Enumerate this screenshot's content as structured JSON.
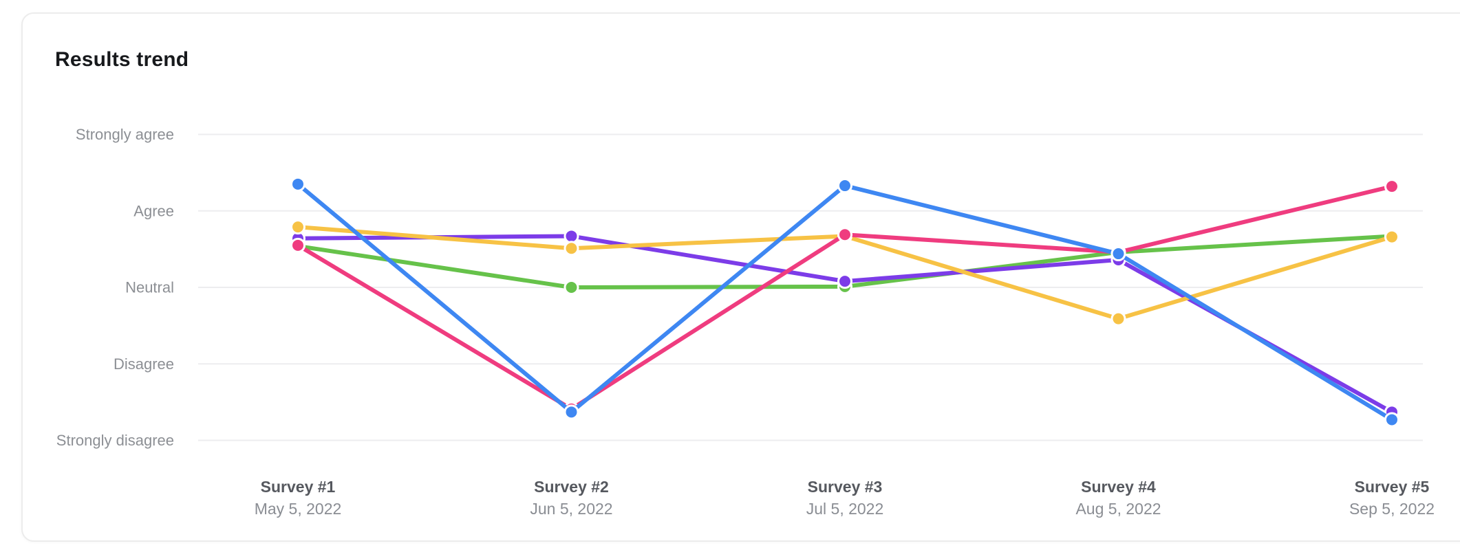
{
  "chart_data": {
    "type": "line",
    "title": "Results trend",
    "legend": false,
    "grid": true,
    "y_axis": {
      "tick_labels": [
        "Strongly agree",
        "Agree",
        "Neutral",
        "Disagree",
        "Strongly disagree"
      ],
      "tick_values": [
        5,
        4,
        3,
        2,
        1
      ],
      "range": [
        1,
        5
      ]
    },
    "categories": [
      {
        "label": "Survey #1",
        "date": "May 5, 2022"
      },
      {
        "label": "Survey #2",
        "date": "Jun 5, 2022"
      },
      {
        "label": "Survey #3",
        "date": "Jul 5, 2022"
      },
      {
        "label": "Survey #4",
        "date": "Aug 5, 2022"
      },
      {
        "label": "Survey #5",
        "date": "Sep 5, 2022"
      }
    ],
    "series": [
      {
        "id": "green",
        "color": "#66C24A",
        "values": [
          3.54,
          3.0,
          3.01,
          3.46,
          3.67
        ]
      },
      {
        "id": "purple",
        "color": "#7C3CE8",
        "values": [
          3.64,
          3.67,
          3.08,
          3.36,
          1.37
        ]
      },
      {
        "id": "yellow",
        "color": "#F7C245",
        "values": [
          3.79,
          3.51,
          3.67,
          2.59,
          3.66
        ]
      },
      {
        "id": "pink",
        "color": "#EF3C7F",
        "values": [
          3.55,
          1.41,
          3.69,
          3.46,
          4.32
        ]
      },
      {
        "id": "blue",
        "color": "#3E87F2",
        "values": [
          4.35,
          1.37,
          4.33,
          3.44,
          1.27
        ]
      }
    ],
    "style": {
      "grid_color": "#EDEDEF",
      "dot_ring_color": "#FFFFFF",
      "title_color": "#17191C"
    }
  }
}
